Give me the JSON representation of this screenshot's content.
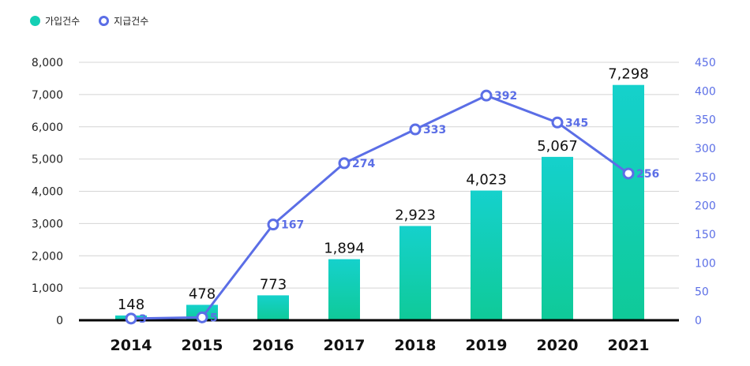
{
  "legend": [
    {
      "label": "가입건수",
      "color": "#14cfb4"
    },
    {
      "label": "지급건수",
      "color": "#5b6ee6"
    }
  ],
  "chart_data": {
    "type": "bar+line",
    "categories": [
      "2014",
      "2015",
      "2016",
      "2017",
      "2018",
      "2019",
      "2020",
      "2021"
    ],
    "series": [
      {
        "name": "가입건수",
        "type": "bar",
        "axis": "left",
        "values": [
          148,
          478,
          773,
          1894,
          2923,
          4023,
          5067,
          7298
        ],
        "labels": [
          "148",
          "478",
          "773",
          "1,894",
          "2,923",
          "4,023",
          "5,067",
          "7,298"
        ]
      },
      {
        "name": "지급건수",
        "type": "line",
        "axis": "right",
        "values": [
          3,
          5,
          167,
          274,
          333,
          392,
          345,
          256
        ],
        "labels": [
          "3",
          "5",
          "167",
          "274",
          "333",
          "392",
          "345",
          "256"
        ]
      }
    ],
    "left_axis": {
      "range": [
        0,
        8000
      ],
      "ticks": [
        "0",
        "1,000",
        "2,000",
        "3,000",
        "4,000",
        "5,000",
        "6,000",
        "7,000",
        "8,000"
      ]
    },
    "right_axis": {
      "range": [
        0,
        450
      ],
      "ticks": [
        "0",
        "50",
        "100",
        "150",
        "200",
        "250",
        "300",
        "350",
        "400",
        "450"
      ]
    },
    "grid": true,
    "legend_position": "top-left",
    "colors": {
      "bar_top": "#15d1cc",
      "bar_bottom": "#0fca98",
      "line": "#5b6ee6",
      "right_axis": "#5b6ee6"
    }
  }
}
